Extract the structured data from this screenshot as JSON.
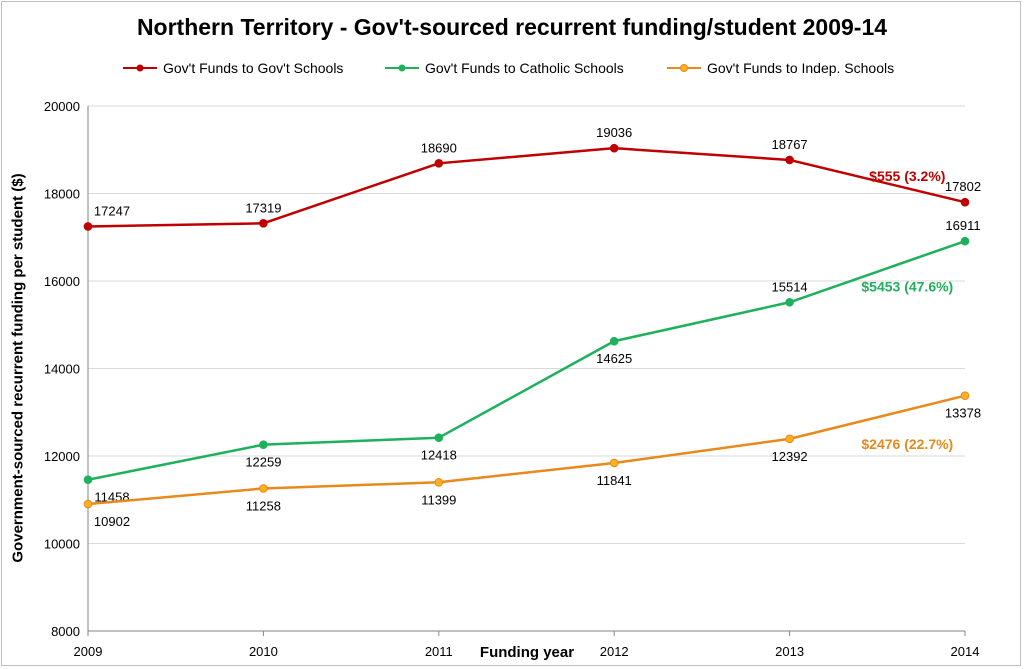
{
  "chart_data": {
    "type": "line",
    "title": "Northern Territory - Gov't-sourced recurrent funding/student 2009-14",
    "xlabel": "Funding year",
    "ylabel": "Government-sourced recurrent funding per student ($)",
    "x": [
      2009,
      2010,
      2011,
      2012,
      2013,
      2014
    ],
    "ylim": [
      8000,
      20000
    ],
    "yticks": [
      8000,
      10000,
      12000,
      14000,
      16000,
      18000,
      20000
    ],
    "grid": true,
    "legend_position": "top",
    "series": [
      {
        "name": "Gov't Funds to Gov't Schools",
        "color": "#c00000",
        "values": [
          17247,
          17319,
          18690,
          19036,
          18767,
          17802
        ],
        "labels": [
          "17247",
          "17319",
          "18690",
          "19036",
          "18767",
          "17802"
        ],
        "label_side": [
          "above",
          "above",
          "above",
          "above",
          "above",
          "above"
        ]
      },
      {
        "name": "Gov't Funds to Catholic Schools",
        "color": "#1fb05c",
        "values": [
          11458,
          12259,
          12418,
          14625,
          15514,
          16911
        ],
        "labels": [
          "11458",
          "12259",
          "12418",
          "14625",
          "15514",
          "16911"
        ],
        "label_side": [
          "below",
          "below",
          "below",
          "below",
          "above",
          "above"
        ]
      },
      {
        "name": "Gov't Funds to Indep. Schools",
        "color": "#e8891c",
        "values": [
          10902,
          11258,
          11399,
          11841,
          12392,
          13378
        ],
        "labels": [
          "10902",
          "11258",
          "11399",
          "11841",
          "12392",
          "13378"
        ],
        "label_side": [
          "below",
          "below",
          "below",
          "below",
          "below",
          "below"
        ]
      }
    ],
    "annotations": [
      {
        "text": "$555 (3.2%)",
        "color": "#c00000",
        "x": 2013.5,
        "y": 18400
      },
      {
        "text": "$5453 (47.6%)",
        "color": "#1fb05c",
        "x": 2013.5,
        "y": 15870
      },
      {
        "text": "$2476 (22.7%)",
        "color": "#e8891c",
        "x": 2013.5,
        "y": 12280
      }
    ]
  }
}
